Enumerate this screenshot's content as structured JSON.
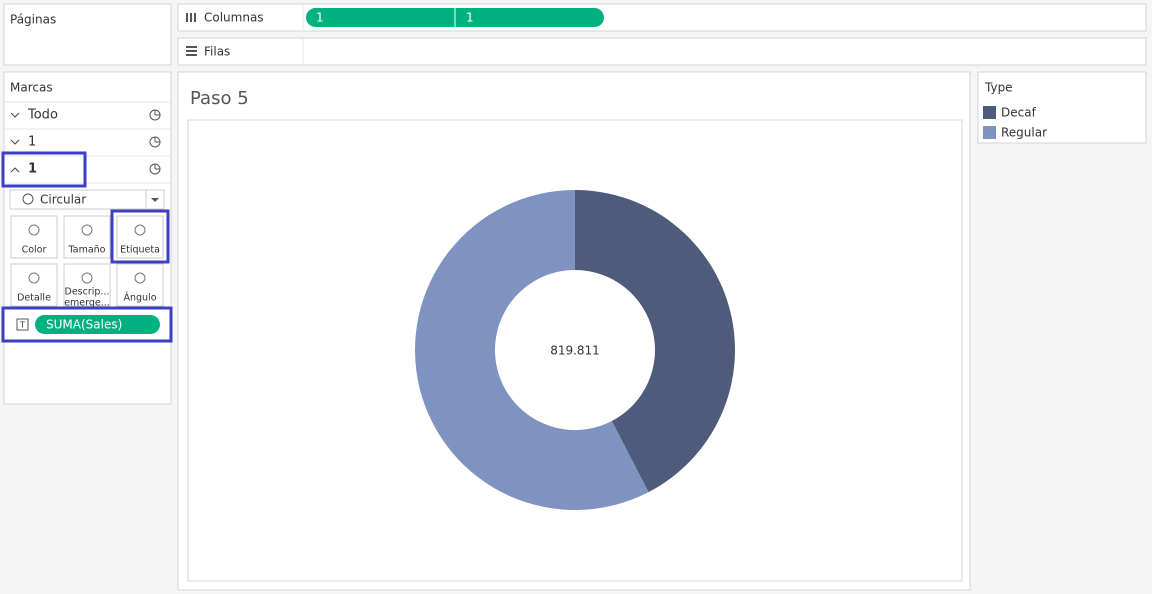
{
  "ui": {
    "pages_title": "Páginas",
    "columns_label": "Columnas",
    "columns_pills": [
      "1",
      "1"
    ],
    "rows_label": "Filas",
    "marks_title": "Marcas",
    "mark_cards": [
      "Todo",
      "1",
      "1"
    ],
    "mark_type": "Circular",
    "mark_buttons": [
      [
        "Color"
      ],
      [
        "Tamaño"
      ],
      [
        "Etiqueta"
      ],
      [
        "Detalle"
      ],
      [
        "Descrip...",
        "emerge..."
      ],
      [
        "Ángulo"
      ]
    ],
    "field_pill": "SUMA(Sales)"
  },
  "chart_data": {
    "type": "pie",
    "title": "Paso 5",
    "legend_title": "Type",
    "categories": [
      "Decaf",
      "Regular"
    ],
    "values": [
      42.4,
      57.6
    ],
    "colors": [
      "#4e5b7a",
      "#7f93c0"
    ],
    "center_label": "819.811"
  }
}
